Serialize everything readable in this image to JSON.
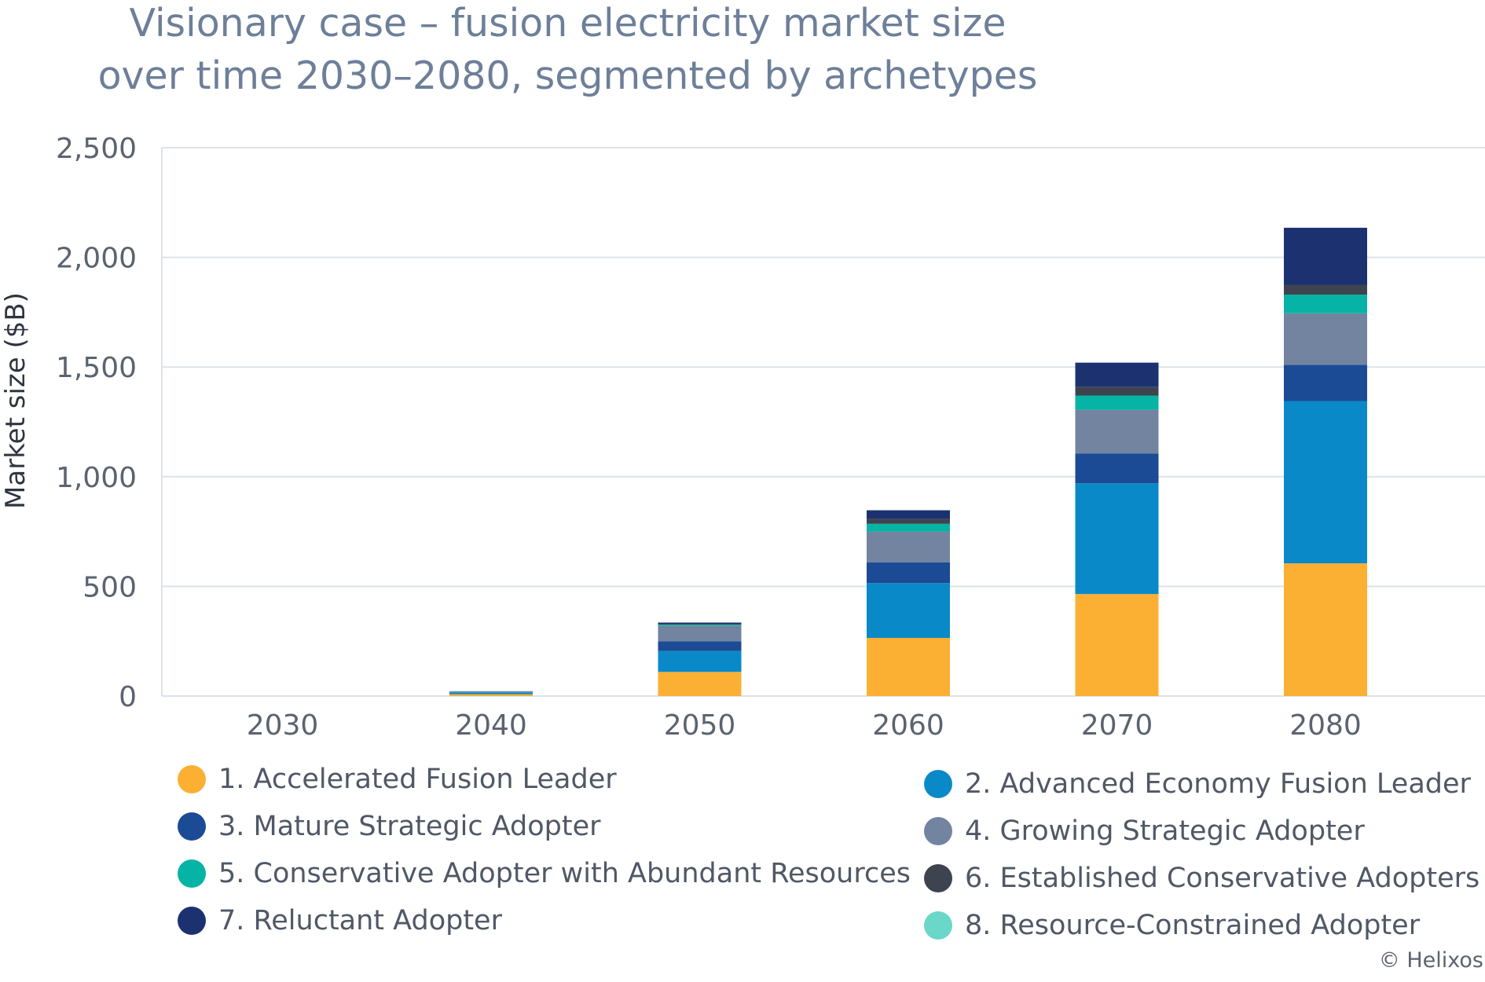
{
  "chart_data": {
    "type": "bar",
    "stacked": true,
    "title_lines": [
      "Visionary case – fusion electricity market size",
      "over time 2030–2080, segmented by archetypes"
    ],
    "ylabel": "Market size ($B)",
    "xlabel": "",
    "ylim": [
      0,
      2500
    ],
    "yticks": [
      0,
      500,
      1000,
      1500,
      2000,
      2500
    ],
    "ytick_labels": [
      "0",
      "500",
      "1,000",
      "1,500",
      "2,000",
      "2,500"
    ],
    "categories": [
      "2030",
      "2040",
      "2050",
      "2060",
      "2070",
      "2080"
    ],
    "grid": true,
    "series": [
      {
        "name": "1. Accelerated Fusion Leader",
        "color": "#fbb034",
        "values": [
          0,
          8,
          110,
          265,
          465,
          605
        ]
      },
      {
        "name": "2. Advanced Economy Fusion Leader",
        "color": "#0a89c9",
        "values": [
          0,
          7,
          95,
          250,
          505,
          740
        ]
      },
      {
        "name": "3. Mature Strategic Adopter",
        "color": "#1b4b94",
        "values": [
          0,
          2,
          45,
          95,
          135,
          165
        ]
      },
      {
        "name": "4. Growing Strategic Adopter",
        "color": "#72849f",
        "values": [
          0,
          3,
          70,
          140,
          200,
          235
        ]
      },
      {
        "name": "5. Conservative Adopter with Abundant Resources",
        "color": "#05b4a5",
        "values": [
          0,
          1,
          5,
          35,
          65,
          85
        ]
      },
      {
        "name": "6. Established Conservative Adopters",
        "color": "#3d4450",
        "values": [
          0,
          0,
          3,
          22,
          40,
          45
        ]
      },
      {
        "name": "8. Resource-Constrained Adopter",
        "color": "#6ad7c8",
        "values": [
          0,
          0,
          0,
          0,
          0,
          0
        ]
      },
      {
        "name": "7. Reluctant Adopter",
        "color": "#1c3270",
        "values": [
          0,
          1,
          7,
          40,
          110,
          260
        ]
      }
    ],
    "legend": [
      {
        "label": "1. Accelerated Fusion Leader",
        "color": "#fbb034"
      },
      {
        "label": "2. Advanced Economy Fusion Leader",
        "color": "#0a89c9"
      },
      {
        "label": "3. Mature Strategic Adopter",
        "color": "#1b4b94"
      },
      {
        "label": "4. Growing Strategic Adopter",
        "color": "#72849f"
      },
      {
        "label": "5. Conservative Adopter with Abundant Resources",
        "color": "#05b4a5"
      },
      {
        "label": "6. Established Conservative Adopters",
        "color": "#3d4450"
      },
      {
        "label": "7. Reluctant Adopter",
        "color": "#1c3270"
      },
      {
        "label": "8. Resource-Constrained Adopter",
        "color": "#6ad7c8"
      }
    ]
  },
  "credit": "© Helixos"
}
